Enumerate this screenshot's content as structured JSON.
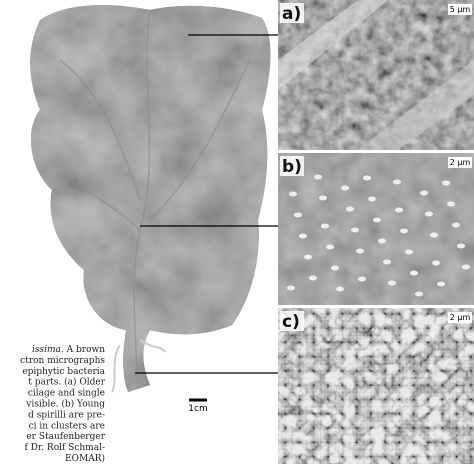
{
  "caption": {
    "lines": [
      [
        "issima",
        ". A brown"
      ],
      [
        "ctron micrographs"
      ],
      [
        "epiphytic bacteria"
      ],
      [
        "t parts. (a) Older"
      ],
      [
        "cilage and single"
      ],
      [
        "visible. (b) Young"
      ],
      [
        "d spirilli are pre-"
      ],
      [
        "ci in clusters are"
      ],
      [
        "er Staufenberger"
      ],
      [
        "f Dr. Rolf Schmal-"
      ],
      [
        "EOMAR)"
      ]
    ]
  },
  "photo": {
    "scale_label": "1cm"
  },
  "panels": [
    {
      "label": "a)",
      "scale": "5 µm"
    },
    {
      "label": "b)",
      "scale": "2 µm"
    },
    {
      "label": "c)",
      "scale": "2 µm"
    }
  ]
}
